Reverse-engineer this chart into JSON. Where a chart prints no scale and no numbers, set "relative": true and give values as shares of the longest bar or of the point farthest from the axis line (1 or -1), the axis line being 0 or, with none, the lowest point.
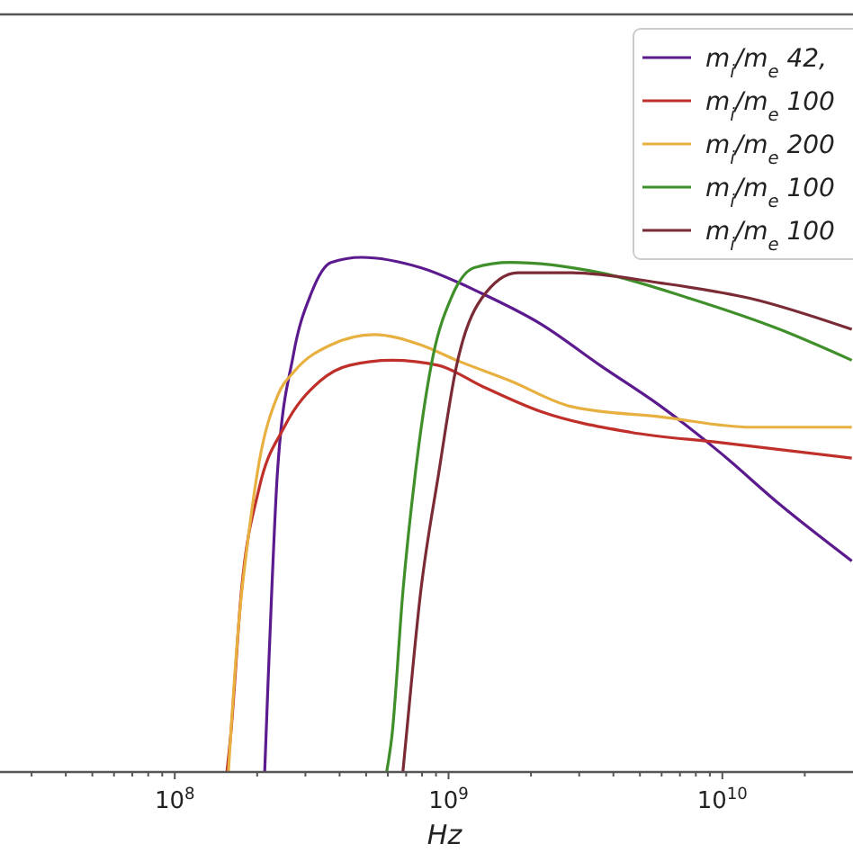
{
  "chart_data": {
    "type": "line",
    "relative": true,
    "log": "x",
    "xlabel": "Hz",
    "legend": "top right",
    "grid": false,
    "xlim": [
      23000000.0,
      30000000000.0
    ],
    "xticks": [
      {
        "value": 30000000.0,
        "label": null
      },
      {
        "value": 40000000.0,
        "label": null
      },
      {
        "value": 50000000.0,
        "label": null
      },
      {
        "value": 60000000.0,
        "label": null
      },
      {
        "value": 70000000.0,
        "label": null
      },
      {
        "value": 80000000.0,
        "label": null
      },
      {
        "value": 90000000.0,
        "label": null
      },
      {
        "value": 100000000.0,
        "label": "10$^{8}$"
      },
      {
        "value": 200000000.0,
        "label": null
      },
      {
        "value": 300000000.0,
        "label": null
      },
      {
        "value": 400000000.0,
        "label": null
      },
      {
        "value": 500000000.0,
        "label": null
      },
      {
        "value": 600000000.0,
        "label": null
      },
      {
        "value": 700000000.0,
        "label": null
      },
      {
        "value": 800000000.0,
        "label": null
      },
      {
        "value": 900000000.0,
        "label": null
      },
      {
        "value": 1000000000.0,
        "label": "10$^{9}$"
      },
      {
        "value": 2000000000.0,
        "label": null
      },
      {
        "value": 3000000000.0,
        "label": null
      },
      {
        "value": 4000000000.0,
        "label": null
      },
      {
        "value": 5000000000.0,
        "label": null
      },
      {
        "value": 6000000000.0,
        "label": null
      },
      {
        "value": 7000000000.0,
        "label": null
      },
      {
        "value": 8000000000.0,
        "label": null
      },
      {
        "value": 9000000000.0,
        "label": null
      },
      {
        "value": 10000000000.0,
        "label": "10$^{10}$"
      },
      {
        "value": 20000000000.0,
        "label": null
      }
    ],
    "series": [
      {
        "name": "m$_{i}$/m$_{e}$ 42,",
        "color": "#5b1a8e",
        "x": [
          213000000.0,
          219000000.0,
          226000000.0,
          237000000.0,
          271000000.0,
          315000000.0,
          372000000.0,
          481000000.0,
          791000000.0,
          1320000000.0,
          2180000000.0,
          3580000000.0,
          5980000000.0,
          9850000000.0,
          16200000000.0,
          29700000000.0
        ],
        "values": [
          0,
          0.17,
          0.35,
          0.58,
          0.81,
          0.93,
          0.99,
          1,
          0.98,
          0.93,
          0.87,
          0.79,
          0.71,
          0.62,
          0.52,
          0.41
        ]
      },
      {
        "name": "m$_{i}$/m$_{e}$ 100",
        "color": "#c0302a",
        "x": [
          155000000.0,
          160000000.0,
          175000000.0,
          203000000.0,
          251000000.0,
          340000000.0,
          433000000.0,
          621000000.0,
          920000000.0,
          1320000000.0,
          2180000000.0,
          4630000000.0,
          9850000000.0,
          29700000000.0
        ],
        "values": [
          0,
          0.07,
          0.35,
          0.55,
          0.67,
          0.76,
          0.79,
          0.8,
          0.79,
          0.75,
          0.7,
          0.66,
          0.64,
          0.61
        ]
      },
      {
        "name": "m$_{i}$/m$_{e}$ 200",
        "color": "#e8b040",
        "x": [
          157000000.0,
          160000000.0,
          172000000.0,
          186000000.0,
          203000000.0,
          237000000.0,
          275000000.0,
          372000000.0,
          534000000.0,
          791000000.0,
          1070000000.0,
          1680000000.0,
          2810000000.0,
          5980000000.0,
          12700000000.0,
          29700000000.0
        ],
        "values": [
          0,
          0.07,
          0.3,
          0.46,
          0.6,
          0.73,
          0.78,
          0.83,
          0.85,
          0.83,
          0.8,
          0.76,
          0.71,
          0.69,
          0.67,
          0.67
        ]
      },
      {
        "name": "m$_{i}$/m$_{e}$ 100",
        "color": "#3f8f2a",
        "x": [
          594000000.0,
          621000000.0,
          681000000.0,
          756000000.0,
          879000000.0,
          1020000000.0,
          1240000000.0,
          1680000000.0,
          3580000000.0,
          7620000000.0,
          16200000000.0,
          29700000000.0
        ],
        "values": [
          0,
          0.07,
          0.35,
          0.58,
          0.81,
          0.92,
          0.98,
          0.99,
          0.97,
          0.92,
          0.86,
          0.8
        ]
      },
      {
        "name": "m$_{i}$/m$_{e}$ 100",
        "color": "#7a2b35",
        "x": [
          681000000.0,
          701000000.0,
          791000000.0,
          920000000.0,
          1070000000.0,
          1320000000.0,
          1790000000.0,
          2810000000.0,
          5980000000.0,
          12700000000.0,
          29700000000.0
        ],
        "values": [
          0,
          0.07,
          0.35,
          0.58,
          0.79,
          0.92,
          0.97,
          0.97,
          0.95,
          0.92,
          0.86
        ]
      }
    ]
  }
}
